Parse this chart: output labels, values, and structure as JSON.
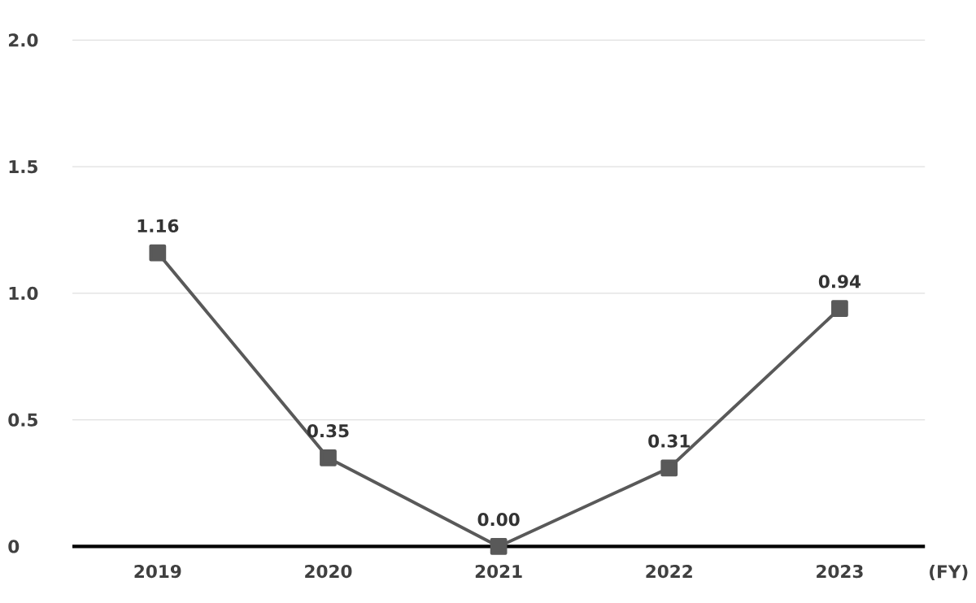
{
  "chart_data": {
    "type": "line",
    "xlabel": "(FY)",
    "categories": [
      "2019",
      "2020",
      "2021",
      "2022",
      "2023"
    ],
    "series": [
      {
        "color": "#595959",
        "values": [
          1.16,
          0.35,
          0.0,
          0.31,
          0.94
        ],
        "value_labels": [
          "1.16",
          "0.35",
          "0.00",
          "0.31",
          "0.94"
        ]
      }
    ],
    "ylim": [
      0,
      2
    ],
    "yticks": [
      0,
      0.5,
      {
        "value": 1,
        "label": "1.0"
      },
      1.5,
      {
        "value": 2,
        "label": "2.0"
      }
    ],
    "grid": "y",
    "marker": "square",
    "line_style": "solid"
  }
}
